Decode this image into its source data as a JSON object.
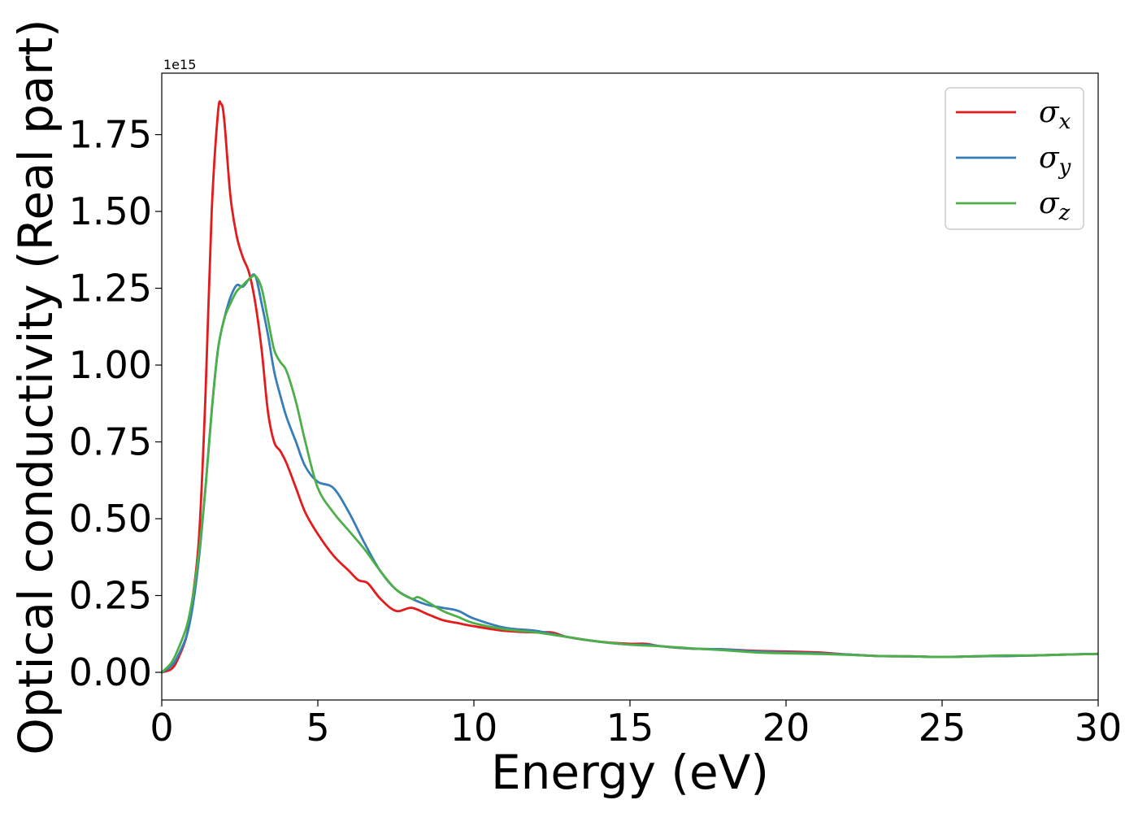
{
  "chart_data": {
    "type": "line",
    "title": "",
    "xlabel": "Energy (eV)",
    "ylabel": "Optical conductivity (Real part)",
    "y_offset_label": "1e15",
    "xlim": [
      0,
      30
    ],
    "ylim": [
      -0.09,
      1.95
    ],
    "xticks": [
      0,
      5,
      10,
      15,
      20,
      25,
      30
    ],
    "xtick_labels": [
      "0",
      "5",
      "10",
      "15",
      "20",
      "25",
      "30"
    ],
    "yticks": [
      0.0,
      0.25,
      0.5,
      0.75,
      1.0,
      1.25,
      1.5,
      1.75
    ],
    "ytick_labels": [
      "0.00",
      "0.25",
      "0.50",
      "0.75",
      "1.00",
      "1.25",
      "1.50",
      "1.75"
    ],
    "grid": false,
    "legend_position": "top-right",
    "series": [
      {
        "name": "σx",
        "symbol": "σ",
        "subscript": "x",
        "color": "#e41a1c",
        "x": [
          0,
          0.3,
          0.5,
          0.8,
          1.0,
          1.2,
          1.4,
          1.6,
          1.8,
          1.9,
          2.0,
          2.2,
          2.4,
          2.6,
          2.8,
          3.0,
          3.2,
          3.4,
          3.6,
          3.8,
          4.0,
          4.3,
          4.6,
          5.0,
          5.5,
          6.0,
          6.3,
          6.6,
          7.0,
          7.5,
          8.0,
          8.5,
          9.0,
          9.5,
          10,
          11,
          12,
          12.5,
          13,
          14,
          15,
          15.5,
          16,
          17,
          18,
          19,
          20,
          21,
          22,
          23,
          24,
          25,
          26,
          27,
          28,
          29,
          30
        ],
        "y": [
          0.0,
          0.01,
          0.04,
          0.12,
          0.25,
          0.45,
          0.9,
          1.5,
          1.82,
          1.85,
          1.8,
          1.55,
          1.42,
          1.35,
          1.3,
          1.2,
          1.05,
          0.85,
          0.75,
          0.72,
          0.68,
          0.6,
          0.52,
          0.45,
          0.38,
          0.33,
          0.3,
          0.29,
          0.24,
          0.2,
          0.21,
          0.19,
          0.17,
          0.16,
          0.15,
          0.135,
          0.13,
          0.13,
          0.115,
          0.1,
          0.093,
          0.093,
          0.085,
          0.077,
          0.075,
          0.07,
          0.068,
          0.065,
          0.058,
          0.053,
          0.052,
          0.05,
          0.052,
          0.053,
          0.055,
          0.058,
          0.06
        ]
      },
      {
        "name": "σy",
        "symbol": "σ",
        "subscript": "y",
        "color": "#377eb8",
        "x": [
          0,
          0.3,
          0.5,
          0.8,
          1.0,
          1.2,
          1.4,
          1.6,
          1.8,
          2.0,
          2.2,
          2.4,
          2.6,
          2.8,
          3.0,
          3.2,
          3.4,
          3.6,
          3.8,
          4.0,
          4.3,
          4.6,
          5.0,
          5.5,
          6.0,
          6.5,
          7.0,
          7.5,
          8.0,
          8.5,
          9.0,
          9.5,
          10,
          11,
          12,
          13,
          14,
          15,
          15.5,
          16,
          17,
          18,
          19,
          20,
          21,
          22,
          23,
          24,
          25,
          26,
          27,
          28,
          29,
          30
        ],
        "y": [
          0.0,
          0.02,
          0.05,
          0.12,
          0.22,
          0.38,
          0.6,
          0.85,
          1.05,
          1.15,
          1.22,
          1.26,
          1.255,
          1.28,
          1.29,
          1.2,
          1.1,
          0.98,
          0.9,
          0.83,
          0.75,
          0.67,
          0.62,
          0.6,
          0.52,
          0.42,
          0.33,
          0.27,
          0.24,
          0.22,
          0.21,
          0.2,
          0.175,
          0.145,
          0.135,
          0.115,
          0.1,
          0.09,
          0.09,
          0.085,
          0.077,
          0.075,
          0.068,
          0.065,
          0.062,
          0.058,
          0.053,
          0.052,
          0.05,
          0.052,
          0.053,
          0.055,
          0.058,
          0.06
        ]
      },
      {
        "name": "σz",
        "symbol": "σ",
        "subscript": "z",
        "color": "#4daf4a",
        "x": [
          0,
          0.3,
          0.5,
          0.8,
          1.0,
          1.2,
          1.4,
          1.6,
          1.8,
          2.0,
          2.2,
          2.4,
          2.6,
          2.8,
          3.0,
          3.2,
          3.4,
          3.6,
          3.8,
          4.0,
          4.3,
          4.6,
          5.0,
          5.5,
          6.0,
          6.5,
          7.0,
          7.5,
          8.0,
          8.2,
          8.5,
          9.0,
          9.5,
          10,
          11,
          12,
          13,
          14,
          15,
          16,
          17,
          18,
          19,
          20,
          21,
          22,
          23,
          24,
          25,
          26,
          27,
          28,
          29,
          30
        ],
        "y": [
          0.0,
          0.03,
          0.07,
          0.15,
          0.25,
          0.4,
          0.6,
          0.85,
          1.05,
          1.15,
          1.2,
          1.24,
          1.26,
          1.28,
          1.29,
          1.25,
          1.15,
          1.05,
          1.01,
          0.98,
          0.88,
          0.75,
          0.6,
          0.52,
          0.46,
          0.4,
          0.33,
          0.27,
          0.24,
          0.245,
          0.23,
          0.2,
          0.18,
          0.16,
          0.14,
          0.13,
          0.115,
          0.1,
          0.09,
          0.085,
          0.078,
          0.072,
          0.065,
          0.062,
          0.06,
          0.057,
          0.053,
          0.052,
          0.05,
          0.052,
          0.055,
          0.055,
          0.058,
          0.06
        ]
      }
    ]
  }
}
